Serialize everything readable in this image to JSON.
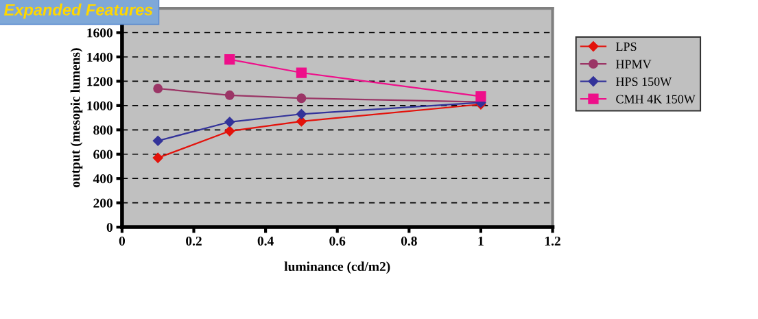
{
  "chart_data": {
    "type": "line",
    "title": "Expanded Features",
    "xlabel": "luminance (cd/m2)",
    "ylabel": "output (mesopic lumens)",
    "x": [
      0.1,
      0.3,
      0.5,
      1.0
    ],
    "series": [
      {
        "name": "LPS",
        "color": "#e3120b",
        "marker": "diamond",
        "values": [
          570,
          790,
          870,
          1010
        ]
      },
      {
        "name": "HPMV",
        "color": "#9b3566",
        "marker": "circle",
        "values": [
          1140,
          1085,
          1060,
          1030
        ]
      },
      {
        "name": "HPS 150W",
        "color": "#33339a",
        "marker": "diamond",
        "values": [
          710,
          865,
          930,
          1025
        ]
      },
      {
        "name": "CMH 4K 150W",
        "color": "#ee0f8a",
        "marker": "square",
        "values": [
          null,
          1380,
          1270,
          1075
        ]
      }
    ],
    "xlim": [
      0,
      1.2
    ],
    "xticks": [
      0,
      0.2,
      0.4,
      0.6,
      0.8,
      1,
      1.2
    ],
    "ylim": [
      0,
      1800
    ],
    "yticks": [
      0,
      200,
      400,
      600,
      800,
      1000,
      1200,
      1400,
      1600
    ],
    "grid": "y",
    "legend": "right"
  }
}
